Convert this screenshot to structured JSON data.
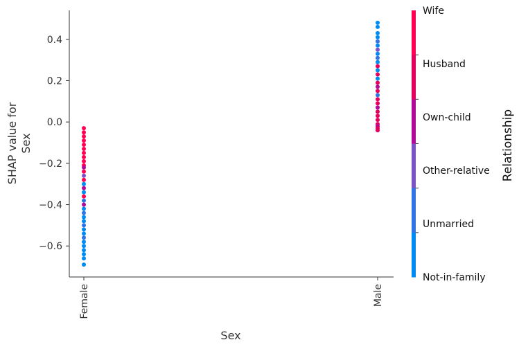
{
  "chart_data": {
    "type": "scatter",
    "title": "",
    "xlabel": "Sex",
    "ylabel_lines": [
      "SHAP value for",
      "Sex"
    ],
    "categories": [
      "Female",
      "Male"
    ],
    "ylim": [
      -0.75,
      0.54
    ],
    "yticks": [
      -0.6,
      -0.4,
      -0.2,
      0.0,
      0.2,
      0.4
    ],
    "ytick_labels": [
      "−0.6",
      "−0.4",
      "−0.2",
      "0.0",
      "0.2",
      "0.4"
    ],
    "grid": false,
    "colorbar": {
      "title": "Relationship",
      "labels": [
        "Wife",
        "Husband",
        "Own-child",
        "Other-relative",
        "Unmarried",
        "Not-in-family"
      ],
      "colors": [
        "#ff0052",
        "#e5005e",
        "#b10a98",
        "#7e52c7",
        "#2f74e2",
        "#008bf3"
      ]
    },
    "points": [
      {
        "x": "Female",
        "y": -0.03,
        "rel": "Wife"
      },
      {
        "x": "Female",
        "y": -0.05,
        "rel": "Wife"
      },
      {
        "x": "Female",
        "y": -0.07,
        "rel": "Wife"
      },
      {
        "x": "Female",
        "y": -0.09,
        "rel": "Wife"
      },
      {
        "x": "Female",
        "y": -0.11,
        "rel": "Wife"
      },
      {
        "x": "Female",
        "y": -0.13,
        "rel": "Wife"
      },
      {
        "x": "Female",
        "y": -0.15,
        "rel": "Wife"
      },
      {
        "x": "Female",
        "y": -0.17,
        "rel": "Wife"
      },
      {
        "x": "Female",
        "y": -0.19,
        "rel": "Wife"
      },
      {
        "x": "Female",
        "y": -0.21,
        "rel": "Wife"
      },
      {
        "x": "Female",
        "y": -0.22,
        "rel": "Own-child"
      },
      {
        "x": "Female",
        "y": -0.24,
        "rel": "Wife"
      },
      {
        "x": "Female",
        "y": -0.26,
        "rel": "Other-relative"
      },
      {
        "x": "Female",
        "y": -0.28,
        "rel": "Wife"
      },
      {
        "x": "Female",
        "y": -0.3,
        "rel": "Not-in-family"
      },
      {
        "x": "Female",
        "y": -0.32,
        "rel": "Own-child"
      },
      {
        "x": "Female",
        "y": -0.34,
        "rel": "Not-in-family"
      },
      {
        "x": "Female",
        "y": -0.36,
        "rel": "Wife"
      },
      {
        "x": "Female",
        "y": -0.38,
        "rel": "Unmarried"
      },
      {
        "x": "Female",
        "y": -0.4,
        "rel": "Own-child"
      },
      {
        "x": "Female",
        "y": -0.42,
        "rel": "Not-in-family"
      },
      {
        "x": "Female",
        "y": -0.44,
        "rel": "Unmarried"
      },
      {
        "x": "Female",
        "y": -0.46,
        "rel": "Not-in-family"
      },
      {
        "x": "Female",
        "y": -0.48,
        "rel": "Not-in-family"
      },
      {
        "x": "Female",
        "y": -0.5,
        "rel": "Unmarried"
      },
      {
        "x": "Female",
        "y": -0.52,
        "rel": "Not-in-family"
      },
      {
        "x": "Female",
        "y": -0.54,
        "rel": "Not-in-family"
      },
      {
        "x": "Female",
        "y": -0.56,
        "rel": "Unmarried"
      },
      {
        "x": "Female",
        "y": -0.58,
        "rel": "Not-in-family"
      },
      {
        "x": "Female",
        "y": -0.6,
        "rel": "Not-in-family"
      },
      {
        "x": "Female",
        "y": -0.62,
        "rel": "Not-in-family"
      },
      {
        "x": "Female",
        "y": -0.64,
        "rel": "Not-in-family"
      },
      {
        "x": "Female",
        "y": -0.66,
        "rel": "Not-in-family"
      },
      {
        "x": "Female",
        "y": -0.69,
        "rel": "Not-in-family"
      },
      {
        "x": "Male",
        "y": 0.48,
        "rel": "Not-in-family"
      },
      {
        "x": "Male",
        "y": 0.46,
        "rel": "Not-in-family"
      },
      {
        "x": "Male",
        "y": 0.43,
        "rel": "Not-in-family"
      },
      {
        "x": "Male",
        "y": 0.41,
        "rel": "Not-in-family"
      },
      {
        "x": "Male",
        "y": 0.39,
        "rel": "Unmarried"
      },
      {
        "x": "Male",
        "y": 0.37,
        "rel": "Not-in-family"
      },
      {
        "x": "Male",
        "y": 0.35,
        "rel": "Other-relative"
      },
      {
        "x": "Male",
        "y": 0.33,
        "rel": "Not-in-family"
      },
      {
        "x": "Male",
        "y": 0.31,
        "rel": "Unmarried"
      },
      {
        "x": "Male",
        "y": 0.29,
        "rel": "Not-in-family"
      },
      {
        "x": "Male",
        "y": 0.27,
        "rel": "Husband"
      },
      {
        "x": "Male",
        "y": 0.25,
        "rel": "Not-in-family"
      },
      {
        "x": "Male",
        "y": 0.23,
        "rel": "Husband"
      },
      {
        "x": "Male",
        "y": 0.21,
        "rel": "Not-in-family"
      },
      {
        "x": "Male",
        "y": 0.19,
        "rel": "Husband"
      },
      {
        "x": "Male",
        "y": 0.17,
        "rel": "Own-child"
      },
      {
        "x": "Male",
        "y": 0.15,
        "rel": "Husband"
      },
      {
        "x": "Male",
        "y": 0.13,
        "rel": "Unmarried"
      },
      {
        "x": "Male",
        "y": 0.11,
        "rel": "Husband"
      },
      {
        "x": "Male",
        "y": 0.09,
        "rel": "Husband"
      },
      {
        "x": "Male",
        "y": 0.07,
        "rel": "Own-child"
      },
      {
        "x": "Male",
        "y": 0.05,
        "rel": "Husband"
      },
      {
        "x": "Male",
        "y": 0.03,
        "rel": "Husband"
      },
      {
        "x": "Male",
        "y": 0.01,
        "rel": "Husband"
      },
      {
        "x": "Male",
        "y": -0.01,
        "rel": "Husband"
      },
      {
        "x": "Male",
        "y": -0.02,
        "rel": "Own-child"
      },
      {
        "x": "Male",
        "y": -0.03,
        "rel": "Husband"
      },
      {
        "x": "Male",
        "y": -0.04,
        "rel": "Husband"
      }
    ]
  }
}
